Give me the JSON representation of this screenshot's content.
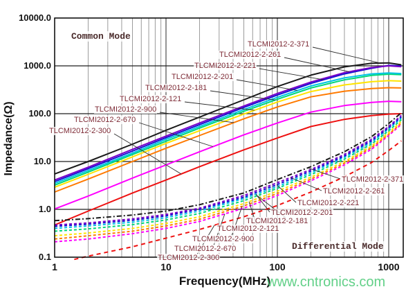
{
  "labels": {
    "common_mode": "Common Mode",
    "differential_mode": "Differential Mode"
  },
  "watermark": "www.cntronics.com",
  "axes": {
    "x_label": "Frequency(MHz)",
    "y_label": "Impedance(Ω)",
    "x_ticks": [
      {
        "text": "1",
        "value": 1
      },
      {
        "text": "10",
        "value": 10
      },
      {
        "text": "100",
        "value": 100
      },
      {
        "text": "1000",
        "value": 1000
      }
    ],
    "y_ticks": [
      {
        "text": "10000.0",
        "value": 10000
      },
      {
        "text": "1000.0",
        "value": 1000
      },
      {
        "text": "100.0",
        "value": 100
      },
      {
        "text": "10.0",
        "value": 10
      },
      {
        "text": "1.0",
        "value": 1
      },
      {
        "text": "0.1",
        "value": 0.1
      }
    ]
  },
  "chart_data": {
    "type": "line",
    "title": "",
    "xlabel": "Frequency(MHz)",
    "ylabel": "Impedance(Ω)",
    "x_scale": "log",
    "y_scale": "log",
    "xlim": [
      1,
      1350
    ],
    "ylim": [
      0.1,
      10000
    ],
    "grid": true,
    "legend_position": "inline-labels",
    "groups": [
      {
        "mode": "Common Mode",
        "line_style": "solid",
        "series": [
          {
            "name": "TLCMI2012-2-371",
            "color": "#1a1a1a",
            "points": [
              [
                1,
                5.5
              ],
              [
                2,
                10
              ],
              [
                5,
                23
              ],
              [
                10,
                45
              ],
              [
                20,
                85
              ],
              [
                50,
                195
              ],
              [
                100,
                370
              ],
              [
                200,
                640
              ],
              [
                400,
                950
              ],
              [
                700,
                1130
              ],
              [
                1000,
                1150
              ],
              [
                1300,
                1050
              ]
            ]
          },
          {
            "name": "TLCMI2012-2-261",
            "color": "#7a00c8",
            "points": [
              [
                1,
                4.1
              ],
              [
                2,
                7.6
              ],
              [
                5,
                18
              ],
              [
                10,
                34
              ],
              [
                20,
                64
              ],
              [
                50,
                145
              ],
              [
                100,
                265
              ],
              [
                200,
                460
              ],
              [
                400,
                720
              ],
              [
                700,
                920
              ],
              [
                1000,
                1000
              ],
              [
                1300,
                960
              ]
            ]
          },
          {
            "name": "TLCMI2012-2-221",
            "color": "#1414d2",
            "points": [
              [
                1,
                3.8
              ],
              [
                2,
                7.1
              ],
              [
                5,
                16.5
              ],
              [
                10,
                31.5
              ],
              [
                20,
                59
              ],
              [
                50,
                135
              ],
              [
                100,
                245
              ],
              [
                200,
                430
              ],
              [
                400,
                680
              ],
              [
                700,
                890
              ],
              [
                1000,
                1020
              ],
              [
                1300,
                1000
              ]
            ]
          },
          {
            "name": "TLCMI2012-2-201",
            "color": "#00c3e6",
            "points": [
              [
                1,
                3.5
              ],
              [
                2,
                6.5
              ],
              [
                5,
                15
              ],
              [
                10,
                29
              ],
              [
                20,
                54
              ],
              [
                50,
                122
              ],
              [
                100,
                220
              ],
              [
                200,
                380
              ],
              [
                400,
                560
              ],
              [
                700,
                680
              ],
              [
                1000,
                710
              ],
              [
                1300,
                690
              ]
            ]
          },
          {
            "name": "TLCMI2012-2-181",
            "color": "#00d878",
            "points": [
              [
                1,
                3.2
              ],
              [
                2,
                6.0
              ],
              [
                5,
                14
              ],
              [
                10,
                26.5
              ],
              [
                20,
                50
              ],
              [
                50,
                112
              ],
              [
                100,
                200
              ],
              [
                200,
                345
              ],
              [
                400,
                510
              ],
              [
                700,
                630
              ],
              [
                1000,
                670
              ],
              [
                1300,
                655
              ]
            ]
          },
          {
            "name": "TLCMI2012-2-121",
            "color": "#ffe400",
            "points": [
              [
                1,
                2.9
              ],
              [
                2,
                5.4
              ],
              [
                5,
                12.5
              ],
              [
                10,
                24
              ],
              [
                20,
                44
              ],
              [
                50,
                98
              ],
              [
                100,
                175
              ],
              [
                200,
                290
              ],
              [
                400,
                400
              ],
              [
                700,
                465
              ],
              [
                1000,
                490
              ],
              [
                1300,
                480
              ]
            ]
          },
          {
            "name": "TLCMI2012-2-900",
            "color": "#ff7a00",
            "points": [
              [
                1,
                2.3
              ],
              [
                2,
                4.3
              ],
              [
                5,
                10
              ],
              [
                10,
                19
              ],
              [
                20,
                35
              ],
              [
                50,
                78
              ],
              [
                100,
                138
              ],
              [
                200,
                225
              ],
              [
                400,
                295
              ],
              [
                700,
                335
              ],
              [
                1000,
                350
              ],
              [
                1300,
                345
              ]
            ]
          },
          {
            "name": "TLCMI2012-2-670",
            "color": "#ff00ff",
            "points": [
              [
                1,
                1.02
              ],
              [
                2,
                1.9
              ],
              [
                5,
                4.5
              ],
              [
                10,
                8.5
              ],
              [
                20,
                16
              ],
              [
                50,
                36
              ],
              [
                100,
                64
              ],
              [
                200,
                108
              ],
              [
                400,
                148
              ],
              [
                700,
                172
              ],
              [
                1000,
                182
              ],
              [
                1300,
                178
              ]
            ]
          },
          {
            "name": "TLCMI2012-2-300",
            "color": "#ee1111",
            "points": [
              [
                1,
                0.47
              ],
              [
                2,
                0.92
              ],
              [
                5,
                2.2
              ],
              [
                10,
                4.1
              ],
              [
                20,
                7.8
              ],
              [
                50,
                17.5
              ],
              [
                100,
                31
              ],
              [
                200,
                54
              ],
              [
                400,
                76
              ],
              [
                700,
                91
              ],
              [
                1000,
                98
              ],
              [
                1300,
                100
              ]
            ]
          }
        ]
      },
      {
        "mode": "Differential Mode",
        "line_style": "dashed",
        "series": [
          {
            "name": "TLCMI2012-2-371",
            "color": "#1a1a1a",
            "points": [
              [
                1,
                0.58
              ],
              [
                2,
                0.64
              ],
              [
                5,
                0.76
              ],
              [
                10,
                0.92
              ],
              [
                20,
                1.25
              ],
              [
                50,
                2.2
              ],
              [
                100,
                4.2
              ],
              [
                200,
                7.8
              ],
              [
                400,
                16
              ],
              [
                700,
                33
              ],
              [
                1000,
                62
              ],
              [
                1300,
                105
              ]
            ]
          },
          {
            "name": "TLCMI2012-2-261",
            "color": "#7a00c8",
            "points": [
              [
                1,
                0.47
              ],
              [
                2,
                0.52
              ],
              [
                5,
                0.63
              ],
              [
                10,
                0.78
              ],
              [
                20,
                1.06
              ],
              [
                50,
                1.95
              ],
              [
                100,
                3.6
              ],
              [
                200,
                6.8
              ],
              [
                400,
                14
              ],
              [
                700,
                29
              ],
              [
                1000,
                54
              ],
              [
                1300,
                92
              ]
            ]
          },
          {
            "name": "TLCMI2012-2-221",
            "color": "#1414d2",
            "points": [
              [
                1,
                0.44
              ],
              [
                2,
                0.49
              ],
              [
                5,
                0.59
              ],
              [
                10,
                0.73
              ],
              [
                20,
                1.0
              ],
              [
                50,
                1.8
              ],
              [
                100,
                3.3
              ],
              [
                200,
                6.3
              ],
              [
                400,
                13
              ],
              [
                700,
                27
              ],
              [
                1000,
                51
              ],
              [
                1300,
                86
              ]
            ]
          },
          {
            "name": "TLCMI2012-2-201",
            "color": "#00c3e6",
            "points": [
              [
                1,
                0.4
              ],
              [
                2,
                0.45
              ],
              [
                5,
                0.54
              ],
              [
                10,
                0.67
              ],
              [
                20,
                0.92
              ],
              [
                50,
                1.68
              ],
              [
                100,
                3.0
              ],
              [
                200,
                5.8
              ],
              [
                400,
                12.2
              ],
              [
                700,
                25
              ],
              [
                1000,
                48
              ],
              [
                1300,
                81
              ]
            ]
          },
          {
            "name": "TLCMI2012-2-181",
            "color": "#00d878",
            "points": [
              [
                1,
                0.35
              ],
              [
                2,
                0.39
              ],
              [
                5,
                0.48
              ],
              [
                10,
                0.6
              ],
              [
                20,
                0.82
              ],
              [
                50,
                1.52
              ],
              [
                100,
                2.75
              ],
              [
                200,
                5.3
              ],
              [
                400,
                11.2
              ],
              [
                700,
                23
              ],
              [
                1000,
                44
              ],
              [
                1300,
                75
              ]
            ]
          },
          {
            "name": "TLCMI2012-2-121",
            "color": "#ffe400",
            "points": [
              [
                1,
                0.28
              ],
              [
                2,
                0.32
              ],
              [
                5,
                0.4
              ],
              [
                10,
                0.51
              ],
              [
                20,
                0.7
              ],
              [
                50,
                1.32
              ],
              [
                100,
                2.4
              ],
              [
                200,
                4.7
              ],
              [
                400,
                10
              ],
              [
                700,
                21
              ],
              [
                1000,
                40
              ],
              [
                1300,
                69
              ]
            ]
          },
          {
            "name": "TLCMI2012-2-900",
            "color": "#ff7a00",
            "points": [
              [
                1,
                0.24
              ],
              [
                2,
                0.28
              ],
              [
                5,
                0.35
              ],
              [
                10,
                0.45
              ],
              [
                20,
                0.62
              ],
              [
                50,
                1.18
              ],
              [
                100,
                2.15
              ],
              [
                200,
                4.3
              ],
              [
                400,
                9.2
              ],
              [
                700,
                19.5
              ],
              [
                1000,
                37
              ],
              [
                1300,
                64
              ]
            ]
          },
          {
            "name": "TLCMI2012-2-670",
            "color": "#ff00ff",
            "points": [
              [
                1,
                0.21
              ],
              [
                2,
                0.24
              ],
              [
                5,
                0.31
              ],
              [
                10,
                0.4
              ],
              [
                20,
                0.56
              ],
              [
                50,
                1.06
              ],
              [
                100,
                1.95
              ],
              [
                200,
                3.95
              ],
              [
                400,
                8.5
              ],
              [
                700,
                18
              ],
              [
                1000,
                35
              ],
              [
                1300,
                60
              ]
            ]
          },
          {
            "name": "TLCMI2012-2-300",
            "color": "#ee1111",
            "points": [
              [
                1.5,
                0.09
              ],
              [
                2,
                0.105
              ],
              [
                5,
                0.165
              ],
              [
                10,
                0.25
              ],
              [
                20,
                0.38
              ],
              [
                50,
                0.7
              ],
              [
                100,
                1.2
              ],
              [
                200,
                2.3
              ],
              [
                400,
                4.8
              ],
              [
                700,
                9.5
              ],
              [
                1000,
                17
              ],
              [
                1300,
                27
              ]
            ]
          }
        ]
      }
    ]
  }
}
